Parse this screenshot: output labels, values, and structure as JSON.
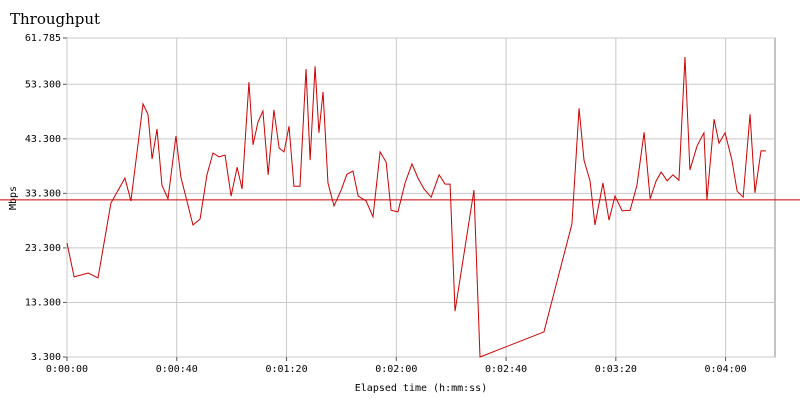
{
  "chart_data": {
    "type": "line",
    "title": "Throughput",
    "x_label": "Elapsed time (h:mm:ss)",
    "y_label": "Mbps",
    "color": "#cc0000",
    "grid": true,
    "reference_line": 32.1,
    "xlim": [
      0,
      258
    ],
    "xticks": [
      {
        "value": 0,
        "label": "0:00:00"
      },
      {
        "value": 40,
        "label": "0:00:40"
      },
      {
        "value": 80,
        "label": "0:01:20"
      },
      {
        "value": 120,
        "label": "0:02:00"
      },
      {
        "value": 160,
        "label": "0:02:40"
      },
      {
        "value": 200,
        "label": "0:03:20"
      },
      {
        "value": 240,
        "label": "0:04:00"
      }
    ],
    "ylim": [
      3.3,
      61.785
    ],
    "yticks": [
      {
        "value": 3.3,
        "label": "3.300"
      },
      {
        "value": 13.3,
        "label": "13.300"
      },
      {
        "value": 23.3,
        "label": "23.300"
      },
      {
        "value": 33.3,
        "label": "33.300"
      },
      {
        "value": 43.3,
        "label": "43.300"
      },
      {
        "value": 53.3,
        "label": "53.300"
      },
      61.785
    ],
    "x": [
      0,
      2.6,
      7.7,
      11.3,
      16.0,
      21.1,
      23.3,
      27.7,
      29.5,
      31.0,
      32.8,
      34.6,
      36.8,
      39.7,
      41.5,
      45.9,
      48.5,
      51.0,
      53.2,
      55.4,
      57.6,
      59.8,
      62.0,
      63.8,
      66.3,
      67.8,
      69.6,
      71.4,
      73.3,
      75.4,
      77.3,
      79.1,
      80.9,
      82.7,
      84.9,
      87.1,
      88.6,
      90.4,
      91.8,
      93.3,
      95.1,
      97.3,
      99.9,
      102.0,
      104.2,
      106.1,
      109.0,
      111.5,
      114.1,
      116.3,
      118.1,
      120.6,
      123.2,
      125.7,
      127.9,
      130.1,
      132.7,
      135.6,
      137.8,
      139.6,
      141.4,
      148.3,
      150.5,
      173.8,
      184.0,
      186.6,
      188.4,
      190.6,
      192.4,
      195.3,
      197.5,
      199.7,
      202.3,
      205.2,
      207.7,
      210.3,
      212.5,
      214.7,
      216.5,
      218.7,
      220.8,
      223.0,
      225.2,
      227.0,
      229.6,
      232.1,
      233.2,
      235.8,
      237.6,
      239.8,
      242.3,
      244.2,
      246.4,
      248.9,
      250.7,
      252.9,
      254.7
    ],
    "values": [
      24.2,
      18.0,
      18.7,
      17.8,
      31.5,
      36.1,
      31.9,
      49.7,
      47.8,
      39.6,
      45.1,
      34.8,
      32.3,
      43.8,
      36.3,
      27.5,
      28.6,
      36.7,
      40.7,
      40.0,
      40.3,
      32.8,
      38.1,
      34.1,
      53.7,
      42.2,
      46.4,
      48.4,
      36.7,
      48.6,
      41.6,
      40.9,
      45.6,
      34.6,
      34.6,
      56.1,
      39.4,
      56.6,
      44.4,
      51.9,
      35.2,
      31.0,
      33.9,
      36.8,
      37.4,
      32.8,
      31.9,
      29.0,
      40.9,
      39.0,
      30.2,
      29.9,
      35.2,
      38.7,
      36.1,
      34.1,
      32.6,
      36.7,
      35.0,
      35.0,
      11.7,
      33.9,
      3.3,
      7.9,
      27.7,
      48.9,
      39.4,
      35.6,
      27.5,
      35.2,
      28.4,
      32.8,
      30.1,
      30.2,
      34.8,
      44.5,
      32.3,
      35.6,
      37.2,
      35.6,
      36.7,
      35.7,
      58.3,
      37.6,
      42.0,
      44.4,
      32.1,
      46.9,
      42.5,
      44.4,
      39.4,
      33.7,
      32.6,
      47.8,
      33.4,
      41.1,
      41.1
    ]
  }
}
